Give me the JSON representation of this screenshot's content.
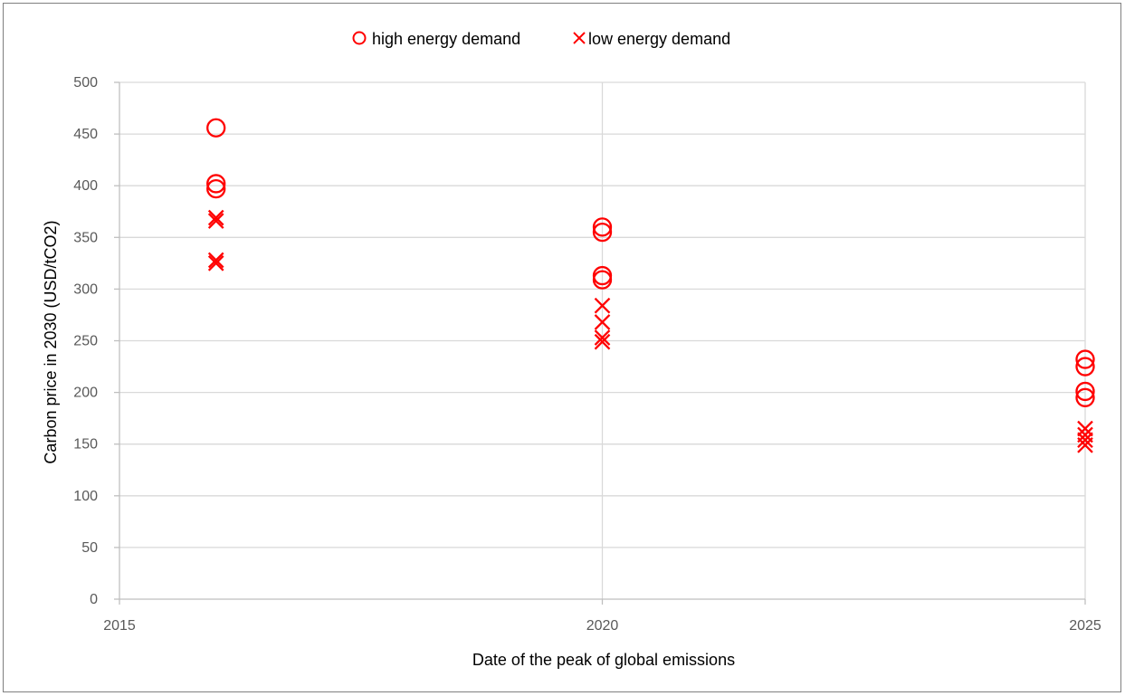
{
  "chart_data": {
    "type": "scatter",
    "title": "",
    "xlabel": "Date of the peak of global emissions",
    "ylabel": "Carbon price in 2030 (USD/tCO2)",
    "xlim": [
      2015,
      2025
    ],
    "ylim": [
      0,
      500
    ],
    "xticks": [
      "2015",
      "2020",
      "2025"
    ],
    "yticks": [
      "0",
      "50",
      "100",
      "150",
      "200",
      "250",
      "300",
      "350",
      "400",
      "450",
      "500"
    ],
    "grid": true,
    "legend_position": "top",
    "series": [
      {
        "name": "high energy demand",
        "marker": "circle",
        "color": "#ff0000",
        "points": [
          {
            "x": 2016,
            "y": 456
          },
          {
            "x": 2016,
            "y": 402
          },
          {
            "x": 2016,
            "y": 397
          },
          {
            "x": 2020,
            "y": 360
          },
          {
            "x": 2020,
            "y": 355
          },
          {
            "x": 2020,
            "y": 313
          },
          {
            "x": 2020,
            "y": 309
          },
          {
            "x": 2025,
            "y": 232
          },
          {
            "x": 2025,
            "y": 225
          },
          {
            "x": 2025,
            "y": 201
          },
          {
            "x": 2025,
            "y": 195
          }
        ]
      },
      {
        "name": "low energy demand",
        "marker": "x",
        "color": "#ff0000",
        "points": [
          {
            "x": 2016,
            "y": 369
          },
          {
            "x": 2016,
            "y": 366
          },
          {
            "x": 2016,
            "y": 328
          },
          {
            "x": 2016,
            "y": 325
          },
          {
            "x": 2020,
            "y": 284
          },
          {
            "x": 2020,
            "y": 268
          },
          {
            "x": 2020,
            "y": 253
          },
          {
            "x": 2020,
            "y": 249
          },
          {
            "x": 2025,
            "y": 165
          },
          {
            "x": 2025,
            "y": 159
          },
          {
            "x": 2025,
            "y": 154
          },
          {
            "x": 2025,
            "y": 149
          }
        ]
      }
    ]
  }
}
